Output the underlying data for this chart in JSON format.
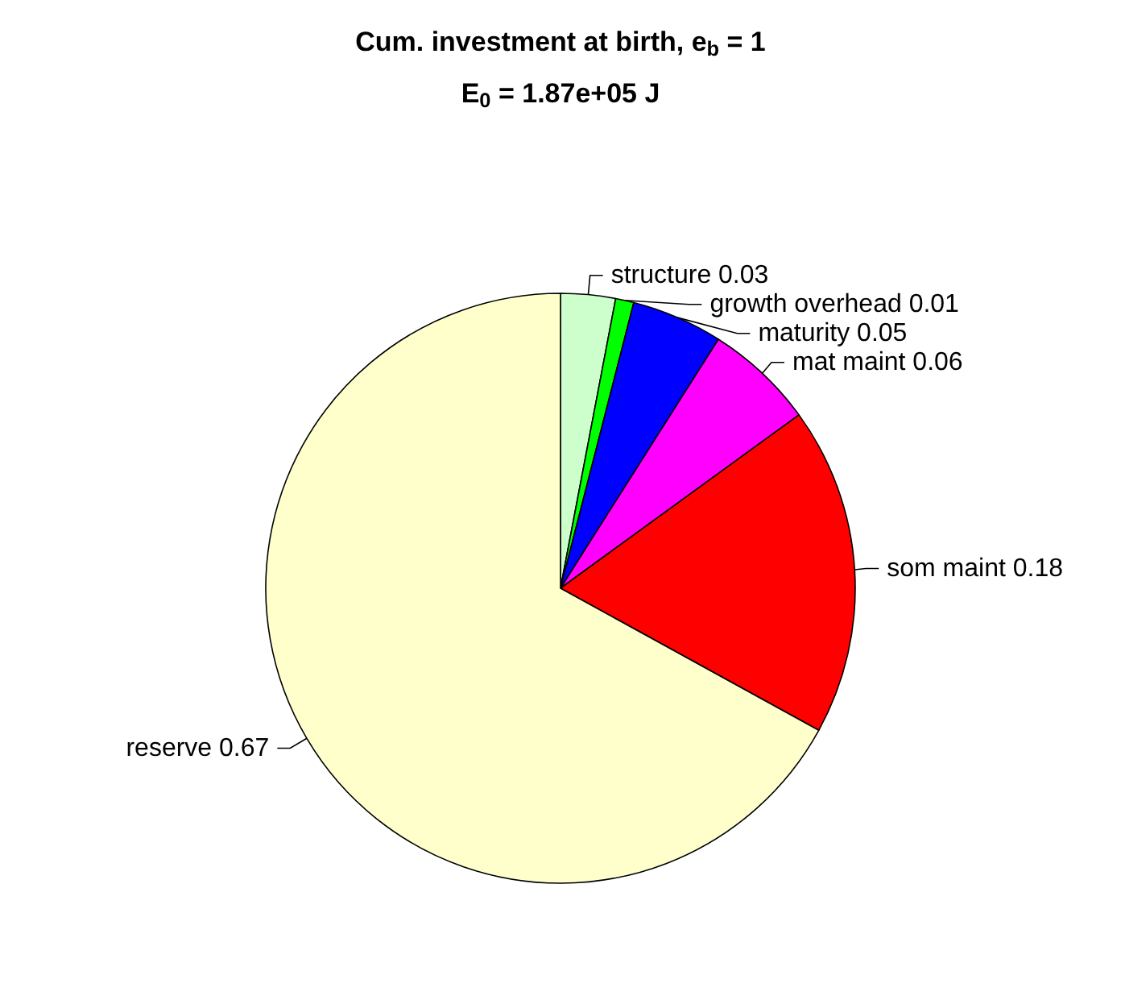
{
  "chart_data": {
    "type": "pie",
    "title": "Cum. investment at birth, e$_{b}$ = 1",
    "subtitle": "E$_{0}$ = 1.87e+05 J",
    "categories": [
      "structure",
      "growth overhead",
      "maturity",
      "mat maint",
      "som maint",
      "reserve"
    ],
    "values": [
      0.03,
      0.01,
      0.05,
      0.06,
      0.18,
      0.67
    ],
    "colors": [
      "#ccffcc",
      "#00ff00",
      "#0000ff",
      "#ff00ff",
      "#ff0000",
      "#ffffcc"
    ],
    "data_labels": true
  }
}
